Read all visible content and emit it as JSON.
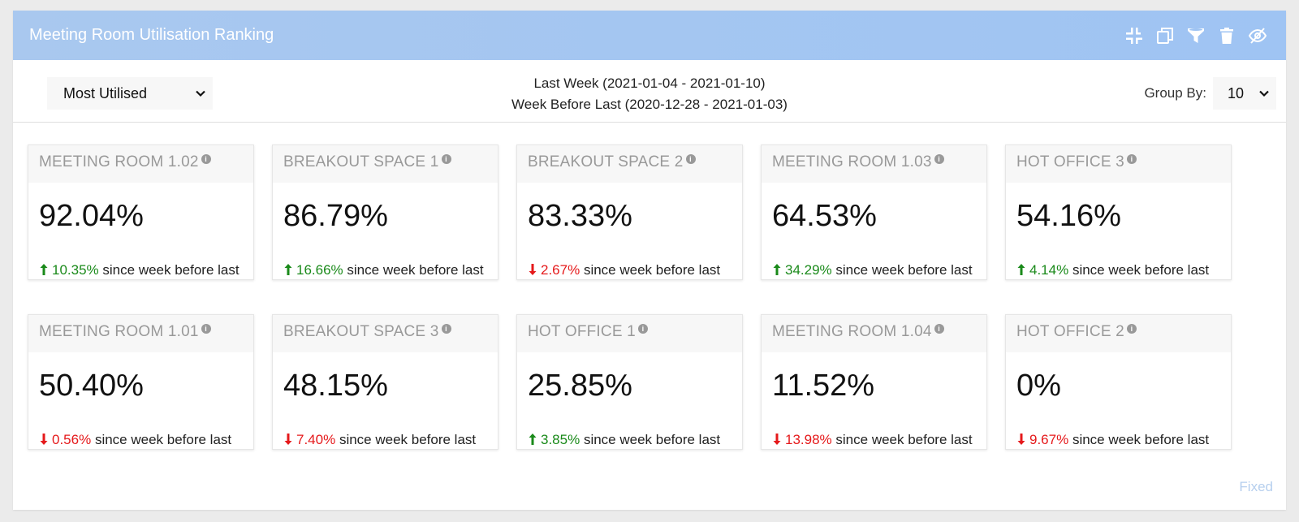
{
  "header": {
    "title": "Meeting Room Utilisation Ranking",
    "tools": [
      "compress-icon",
      "copy-icon",
      "filter-icon",
      "trash-icon",
      "eye-slash-icon"
    ]
  },
  "controls": {
    "sort_select": "Most Utilised",
    "last_week": "Last Week (2021-01-04 - 2021-01-10)",
    "week_before_last": "Week Before Last (2020-12-28 - 2021-01-03)",
    "group_label": "Group By:",
    "group_value": "10"
  },
  "delta_suffix": "since week before last",
  "colors": {
    "up": "#1a8a1a",
    "down": "#e5191b",
    "header": "#a9c8ef"
  },
  "cards": [
    {
      "name": "MEETING ROOM 1.02",
      "value": "92.04%",
      "delta": "10.35%",
      "direction": "up"
    },
    {
      "name": "BREAKOUT SPACE 1",
      "value": "86.79%",
      "delta": "16.66%",
      "direction": "up"
    },
    {
      "name": "BREAKOUT SPACE 2",
      "value": "83.33%",
      "delta": "2.67%",
      "direction": "down"
    },
    {
      "name": "MEETING ROOM 1.03",
      "value": "64.53%",
      "delta": "34.29%",
      "direction": "up"
    },
    {
      "name": "HOT OFFICE 3",
      "value": "54.16%",
      "delta": "4.14%",
      "direction": "up"
    },
    {
      "name": "MEETING ROOM 1.01",
      "value": "50.40%",
      "delta": "0.56%",
      "direction": "down"
    },
    {
      "name": "BREAKOUT SPACE 3",
      "value": "48.15%",
      "delta": "7.40%",
      "direction": "down"
    },
    {
      "name": "HOT OFFICE 1",
      "value": "25.85%",
      "delta": "3.85%",
      "direction": "up"
    },
    {
      "name": "MEETING ROOM 1.04",
      "value": "11.52%",
      "delta": "13.98%",
      "direction": "down"
    },
    {
      "name": "HOT OFFICE 2",
      "value": "0%",
      "delta": "9.67%",
      "direction": "down"
    }
  ],
  "footer": {
    "fixed_label": "Fixed"
  }
}
